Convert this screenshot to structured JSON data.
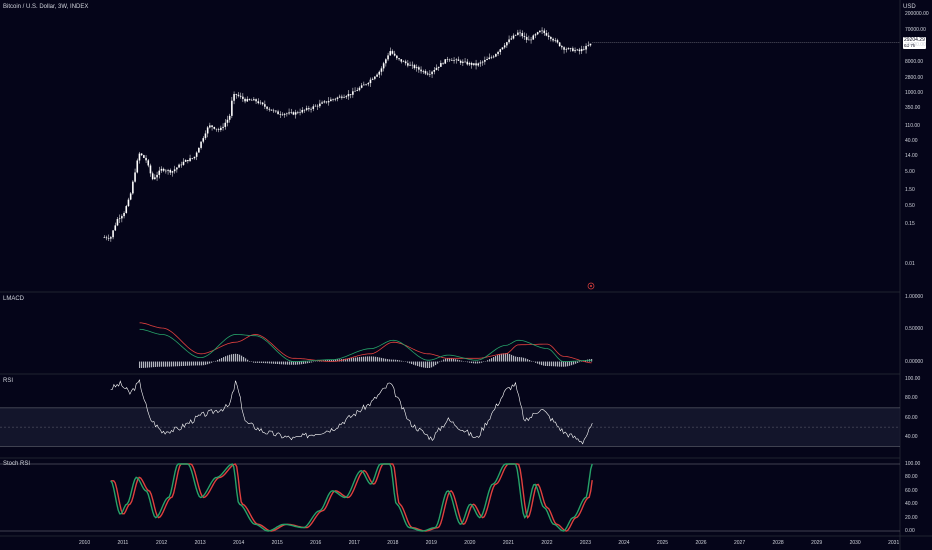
{
  "header": {
    "title": "Bitcoin / U.S. Dollar, 3W, INDEX",
    "currency": "USD"
  },
  "price_panel": {
    "last_price": "29204.29",
    "countdown": "6d 7h",
    "axis_labels": [
      "200000.00",
      "70000.00",
      "25000.00",
      "8000.00",
      "2800.00",
      "1000.00",
      "350.00",
      "110.00",
      "40.00",
      "14.00",
      "5.00",
      "1.50",
      "0.50",
      "0.15",
      "0.01"
    ],
    "marker_icon": "event-marker-icon"
  },
  "lmacd_panel": {
    "title": "LMACD",
    "axis_labels": [
      "1.00000",
      "0.50000",
      "0.00000"
    ]
  },
  "rsi_panel": {
    "title": "RSI",
    "axis_labels": [
      "100.00",
      "80.00",
      "60.00",
      "40.00"
    ]
  },
  "stoch_panel": {
    "title": "Stoch RSI",
    "axis_labels": [
      "100.00",
      "80.00",
      "60.00",
      "40.00",
      "20.00",
      "0.00"
    ]
  },
  "time_axis": [
    "2010",
    "2011",
    "2012",
    "2013",
    "2014",
    "2015",
    "2016",
    "2017",
    "2018",
    "2019",
    "2020",
    "2021",
    "2022",
    "2023",
    "2024",
    "2025",
    "2026",
    "2027",
    "2028",
    "2029",
    "2030",
    "2031"
  ],
  "colors": {
    "background": "#050519",
    "candle": "#ffffff",
    "green": "#26a269",
    "red": "#e0403e",
    "grid": "#787b86"
  },
  "chart_data": [
    {
      "type": "candlestick",
      "title": "Bitcoin / U.S. Dollar, 3W, INDEX",
      "y_scale": "log",
      "ylim": [
        0.003,
        300000
      ],
      "x": [
        "2010-07",
        "2010-09",
        "2010-11",
        "2011-01",
        "2011-03",
        "2011-05",
        "2011-06",
        "2011-08",
        "2011-10",
        "2012-01",
        "2012-04",
        "2012-08",
        "2012-11",
        "2013-03",
        "2013-04",
        "2013-07",
        "2013-10",
        "2013-11",
        "2013-12",
        "2014-03",
        "2014-06",
        "2014-09",
        "2015-01",
        "2015-06",
        "2015-11",
        "2016-06",
        "2016-12",
        "2017-05",
        "2017-09",
        "2017-12",
        "2018-02",
        "2018-06",
        "2018-12",
        "2019-06",
        "2019-12",
        "2020-03",
        "2020-08",
        "2020-12",
        "2021-04",
        "2021-07",
        "2021-11",
        "2022-02",
        "2022-06",
        "2022-11",
        "2023-03"
      ],
      "close": [
        0.06,
        0.06,
        0.2,
        0.3,
        0.9,
        8,
        17,
        11,
        3,
        6,
        5,
        10,
        13,
        90,
        110,
        80,
        200,
        800,
        900,
        600,
        600,
        400,
        250,
        250,
        350,
        650,
        950,
        2000,
        4500,
        17000,
        10000,
        6500,
        3600,
        10000,
        7200,
        6500,
        11500,
        28000,
        58000,
        33000,
        65000,
        42000,
        20000,
        16500,
        28000
      ]
    },
    {
      "type": "line",
      "title": "LMACD",
      "ylim": [
        -0.1,
        1.0
      ],
      "x": [
        "2011-06",
        "2012-01",
        "2013-01",
        "2013-12",
        "2014-06",
        "2015-06",
        "2016-06",
        "2017-06",
        "2018-01",
        "2018-12",
        "2019-06",
        "2020-03",
        "2020-12",
        "2021-04",
        "2022-01",
        "2022-06",
        "2023-03"
      ],
      "series": [
        {
          "values": [
            0.5,
            0.42,
            0.06,
            0.42,
            0.4,
            0.0,
            0.03,
            0.2,
            0.33,
            0.02,
            0.1,
            0.02,
            0.25,
            0.33,
            0.2,
            0.0,
            0.02
          ]
        },
        {
          "values": [
            0.6,
            0.52,
            0.12,
            0.3,
            0.42,
            0.05,
            0.0,
            0.12,
            0.3,
            0.12,
            0.05,
            0.05,
            0.12,
            0.26,
            0.27,
            0.08,
            -0.02
          ]
        },
        {
          "values": [
            -0.1,
            -0.08,
            -0.06,
            0.12,
            -0.02,
            -0.05,
            0.03,
            0.08,
            0.03,
            -0.1,
            0.05,
            -0.03,
            0.13,
            0.07,
            -0.07,
            -0.08,
            0.04
          ]
        }
      ]
    },
    {
      "type": "line",
      "title": "RSI",
      "ylim": [
        20,
        100
      ],
      "x": [
        "2010-09",
        "2010-12",
        "2011-03",
        "2011-06",
        "2011-09",
        "2012-01",
        "2012-06",
        "2013-01",
        "2013-04",
        "2013-10",
        "2013-12",
        "2014-03",
        "2014-09",
        "2015-06",
        "2016-06",
        "2017-06",
        "2017-12",
        "2018-06",
        "2019-01",
        "2019-06",
        "2020-03",
        "2020-12",
        "2021-03",
        "2021-06",
        "2021-11",
        "2022-06",
        "2022-12",
        "2023-03"
      ],
      "values": [
        90,
        95,
        85,
        97,
        60,
        45,
        48,
        62,
        65,
        72,
        98,
        55,
        45,
        38,
        48,
        75,
        96,
        55,
        38,
        58,
        38,
        88,
        95,
        55,
        70,
        45,
        35,
        52
      ]
    },
    {
      "type": "line",
      "title": "Stoch RSI",
      "ylim": [
        0,
        100
      ],
      "x": [
        "2010-09",
        "2010-12",
        "2011-02",
        "2011-05",
        "2011-08",
        "2011-11",
        "2012-03",
        "2012-06",
        "2012-09",
        "2013-01",
        "2013-06",
        "2013-11",
        "2014-01",
        "2014-06",
        "2014-10",
        "2015-03",
        "2015-09",
        "2016-02",
        "2016-06",
        "2016-10",
        "2017-03",
        "2017-06",
        "2017-09",
        "2017-12",
        "2018-02",
        "2018-06",
        "2018-10",
        "2019-02",
        "2019-06",
        "2019-10",
        "2020-01",
        "2020-04",
        "2020-08",
        "2020-12",
        "2021-03",
        "2021-06",
        "2021-09",
        "2021-12",
        "2022-03",
        "2022-06",
        "2022-09",
        "2023-01",
        "2023-03"
      ],
      "values": [
        75,
        25,
        40,
        80,
        60,
        20,
        50,
        100,
        100,
        50,
        80,
        100,
        40,
        10,
        0,
        10,
        5,
        30,
        60,
        50,
        90,
        70,
        100,
        100,
        40,
        5,
        0,
        5,
        60,
        10,
        40,
        20,
        70,
        100,
        100,
        20,
        70,
        35,
        10,
        0,
        20,
        50,
        100
      ]
    }
  ]
}
